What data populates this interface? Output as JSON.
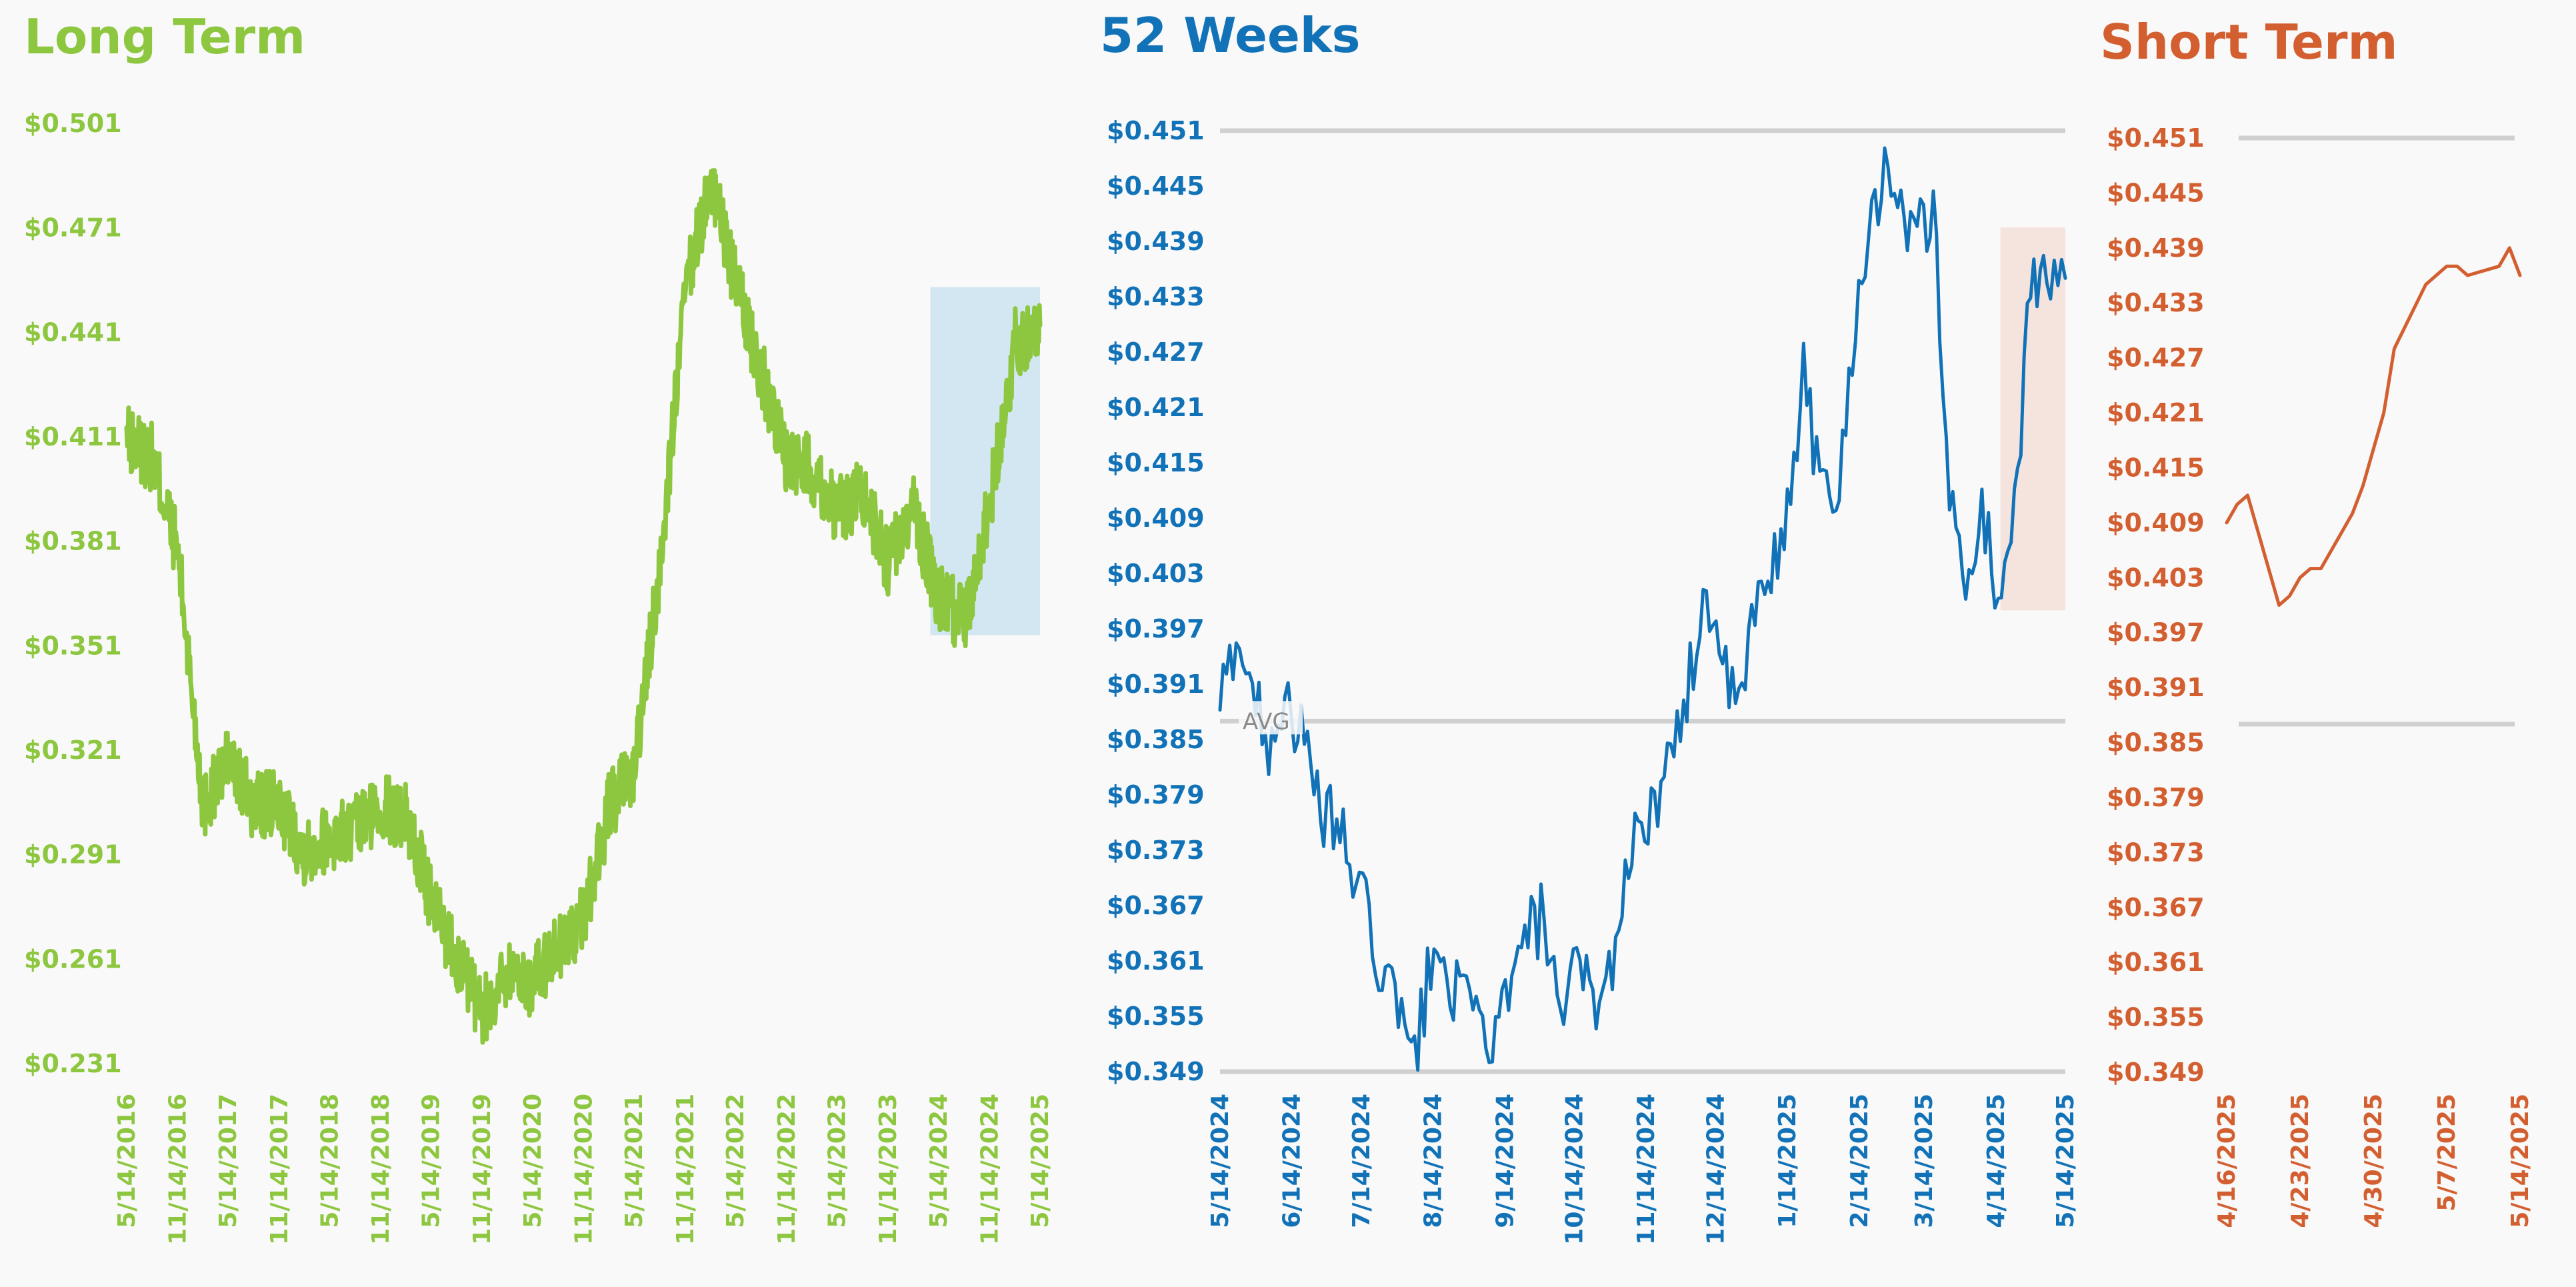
{
  "colors": {
    "long_term": "#8dc63f",
    "weeks52": "#1172b7",
    "short_term": "#d35f30",
    "grid": "#d0d0d0",
    "long_highlight": "#d3e7f3",
    "weeks_highlight": "#f5e4de",
    "background": "#f9f9f9"
  },
  "chart_data": [
    {
      "type": "line",
      "title": "Long Term",
      "series": [
        {
          "x": [
            "5/14/2016",
            "8/14/2016",
            "11/14/2016",
            "2/14/2017",
            "5/14/2017",
            "8/14/2017",
            "11/14/2017",
            "2/14/2018",
            "5/14/2018",
            "8/14/2018",
            "11/14/2018",
            "2/14/2019",
            "5/14/2019",
            "8/14/2019",
            "11/14/2019",
            "2/14/2020",
            "5/14/2020",
            "8/14/2020",
            "11/14/2020",
            "2/14/2021",
            "5/14/2021",
            "8/14/2021",
            "11/14/2021",
            "2/14/2022",
            "5/14/2022",
            "8/14/2022",
            "11/14/2022",
            "2/14/2023",
            "5/14/2023",
            "8/14/2023",
            "11/14/2023",
            "2/14/2024",
            "5/14/2024",
            "8/14/2024",
            "11/14/2024",
            "2/14/2025",
            "5/14/2025"
          ],
          "values": [
            0.41,
            0.405,
            0.378,
            0.305,
            0.318,
            0.305,
            0.305,
            0.292,
            0.296,
            0.298,
            0.305,
            0.302,
            0.278,
            0.262,
            0.245,
            0.258,
            0.254,
            0.265,
            0.272,
            0.305,
            0.315,
            0.372,
            0.452,
            0.485,
            0.455,
            0.43,
            0.405,
            0.402,
            0.39,
            0.395,
            0.375,
            0.39,
            0.365,
            0.358,
            0.392,
            0.438,
            0.443
          ]
        }
      ],
      "y_ticks": [
        "$0.501",
        "$0.471",
        "$0.441",
        "$0.411",
        "$0.381",
        "$0.351",
        "$0.321",
        "$0.291",
        "$0.261",
        "$0.231"
      ],
      "x_ticks": [
        "5/14/2016",
        "11/14/2016",
        "5/14/2017",
        "11/14/2017",
        "5/14/2018",
        "11/14/2018",
        "5/14/2019",
        "11/14/2019",
        "5/14/2020",
        "11/14/2020",
        "5/14/2021",
        "11/14/2021",
        "5/14/2022",
        "11/14/2022",
        "5/14/2023",
        "11/14/2023",
        "5/14/2024",
        "11/14/2024",
        "5/14/2025"
      ],
      "ylim": [
        0.231,
        0.501
      ],
      "grid": false,
      "highlight_region": {
        "x": [
          "4/14/2024",
          "5/14/2025"
        ],
        "y": [
          0.354,
          0.454
        ]
      }
    },
    {
      "type": "line",
      "title": "52 Weeks",
      "series": [
        {
          "x": [
            "5/14/2024",
            "5/21/2024",
            "5/28/2024",
            "6/4/2024",
            "6/11/2024",
            "6/18/2024",
            "6/25/2024",
            "7/2/2024",
            "7/9/2024",
            "7/16/2024",
            "7/23/2024",
            "7/30/2024",
            "8/6/2024",
            "8/13/2024",
            "8/20/2024",
            "8/27/2024",
            "9/3/2024",
            "9/10/2024",
            "9/17/2024",
            "9/24/2024",
            "10/1/2024",
            "10/8/2024",
            "10/15/2024",
            "10/22/2024",
            "10/29/2024",
            "11/5/2024",
            "11/12/2024",
            "11/19/2024",
            "11/26/2024",
            "12/3/2024",
            "12/10/2024",
            "12/17/2024",
            "12/24/2024",
            "12/31/2024",
            "1/7/2025",
            "1/14/2025",
            "1/21/2025",
            "1/28/2025",
            "2/4/2025",
            "2/11/2025",
            "2/18/2025",
            "2/25/2025",
            "3/4/2025",
            "3/11/2025",
            "3/18/2025",
            "3/25/2025",
            "4/1/2025",
            "4/8/2025",
            "4/15/2025",
            "4/22/2025",
            "4/29/2025",
            "5/6/2025",
            "5/14/2025"
          ],
          "values": [
            0.388,
            0.397,
            0.39,
            0.385,
            0.39,
            0.385,
            0.378,
            0.376,
            0.372,
            0.366,
            0.36,
            0.355,
            0.35,
            0.361,
            0.36,
            0.356,
            0.354,
            0.353,
            0.358,
            0.364,
            0.366,
            0.352,
            0.361,
            0.357,
            0.359,
            0.37,
            0.378,
            0.376,
            0.384,
            0.392,
            0.402,
            0.392,
            0.388,
            0.399,
            0.402,
            0.41,
            0.425,
            0.413,
            0.409,
            0.428,
            0.44,
            0.448,
            0.442,
            0.439,
            0.443,
            0.412,
            0.401,
            0.41,
            0.4,
            0.41,
            0.433,
            0.437,
            0.435
          ]
        }
      ],
      "y_ticks": [
        "$0.451",
        "$0.445",
        "$0.439",
        "$0.433",
        "$0.427",
        "$0.421",
        "$0.415",
        "$0.409",
        "$0.403",
        "$0.397",
        "$0.391",
        "$0.385",
        "$0.379",
        "$0.373",
        "$0.367",
        "$0.361",
        "$0.355",
        "$0.349"
      ],
      "x_ticks": [
        "5/14/2024",
        "6/14/2024",
        "7/14/2024",
        "8/14/2024",
        "9/14/2024",
        "10/14/2024",
        "11/14/2024",
        "12/14/2024",
        "1/14/2025",
        "2/14/2025",
        "3/14/2025",
        "4/14/2025",
        "5/14/2025"
      ],
      "ylim": [
        0.349,
        0.451
      ],
      "reference_lines": [
        {
          "value": 0.451
        },
        {
          "value": 0.387,
          "label": "AVG"
        },
        {
          "value": 0.349
        }
      ],
      "highlight_region": {
        "x": [
          "4/16/2025",
          "5/14/2025"
        ],
        "y": [
          0.399,
          0.4405
        ]
      }
    },
    {
      "type": "line",
      "title": "Short Term",
      "series": [
        {
          "x": [
            "4/16/2025",
            "4/17/2025",
            "4/18/2025",
            "4/21/2025",
            "4/22/2025",
            "4/23/2025",
            "4/24/2025",
            "4/25/2025",
            "4/28/2025",
            "4/29/2025",
            "4/30/2025",
            "5/1/2025",
            "5/2/2025",
            "5/5/2025",
            "5/6/2025",
            "5/7/2025",
            "5/8/2025",
            "5/9/2025",
            "5/12/2025",
            "5/13/2025",
            "5/14/2025"
          ],
          "values": [
            0.409,
            0.411,
            0.412,
            0.4,
            0.401,
            0.403,
            0.404,
            0.404,
            0.41,
            0.413,
            0.417,
            0.421,
            0.428,
            0.435,
            0.436,
            0.437,
            0.437,
            0.436,
            0.437,
            0.439,
            0.436
          ]
        }
      ],
      "y_ticks": [
        "$0.451",
        "$0.445",
        "$0.439",
        "$0.433",
        "$0.427",
        "$0.421",
        "$0.415",
        "$0.409",
        "$0.403",
        "$0.397",
        "$0.391",
        "$0.385",
        "$0.379",
        "$0.373",
        "$0.367",
        "$0.361",
        "$0.355",
        "$0.349"
      ],
      "x_ticks": [
        "4/16/2025",
        "4/23/2025",
        "4/30/2025",
        "5/7/2025",
        "5/14/2025"
      ],
      "ylim": [
        0.349,
        0.451
      ],
      "reference_lines": [
        {
          "value": 0.451
        },
        {
          "value": 0.387
        }
      ]
    }
  ]
}
